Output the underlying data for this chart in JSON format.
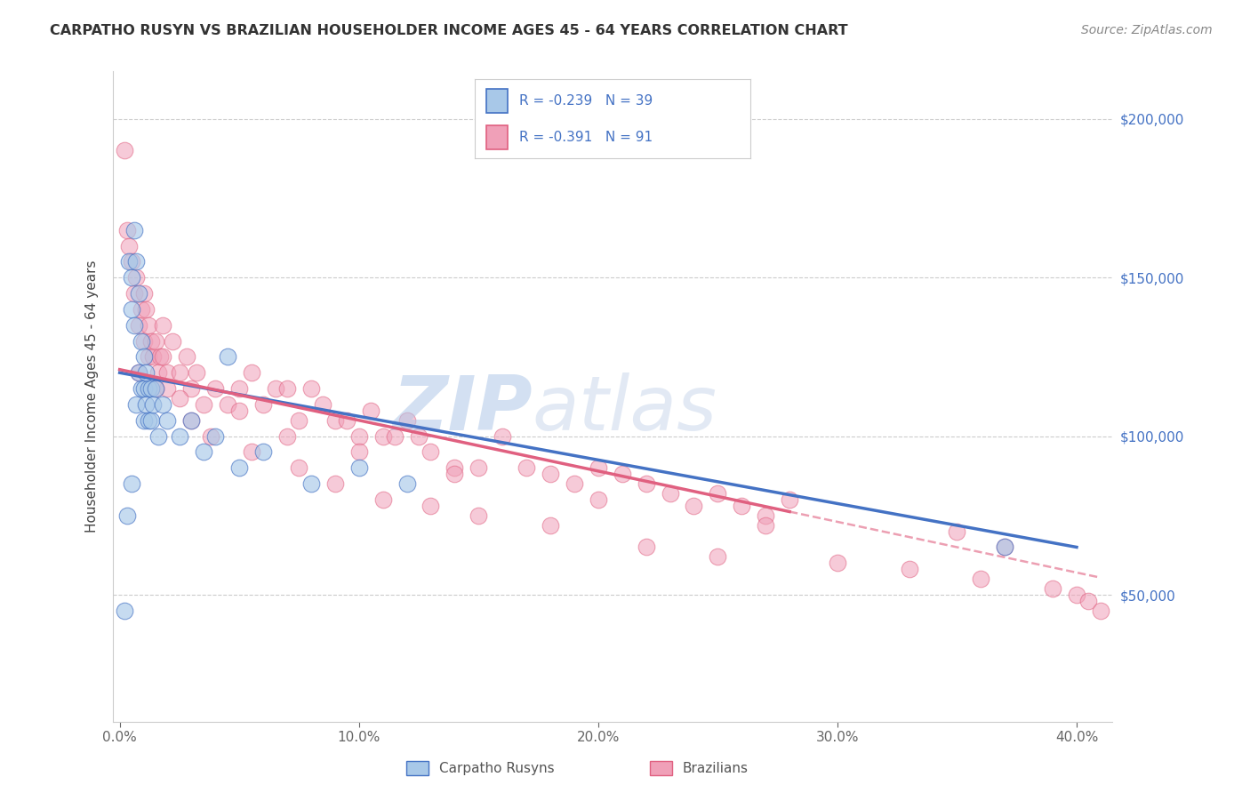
{
  "title": "CARPATHO RUSYN VS BRAZILIAN HOUSEHOLDER INCOME AGES 45 - 64 YEARS CORRELATION CHART",
  "source": "Source: ZipAtlas.com",
  "ylabel_label": "Householder Income Ages 45 - 64 years",
  "legend_label1": "Carpatho Rusyns",
  "legend_label2": "Brazilians",
  "R1": -0.239,
  "N1": 39,
  "R2": -0.391,
  "N2": 91,
  "color1": "#a8c8e8",
  "color2": "#f0a0b8",
  "line_color1": "#4472c4",
  "line_color2": "#e06080",
  "watermark_zip": "ZIP",
  "watermark_atlas": "atlas",
  "blue_x": [
    0.2,
    0.3,
    0.4,
    0.5,
    0.5,
    0.6,
    0.6,
    0.7,
    0.7,
    0.8,
    0.8,
    0.9,
    0.9,
    1.0,
    1.0,
    1.0,
    1.1,
    1.1,
    1.2,
    1.2,
    1.3,
    1.3,
    1.4,
    1.5,
    1.6,
    1.8,
    2.0,
    2.5,
    3.0,
    3.5,
    4.0,
    5.0,
    6.0,
    8.0,
    10.0,
    12.0,
    4.5,
    37.0,
    0.5
  ],
  "blue_y": [
    45000,
    75000,
    155000,
    150000,
    140000,
    165000,
    135000,
    155000,
    110000,
    145000,
    120000,
    130000,
    115000,
    125000,
    115000,
    105000,
    120000,
    110000,
    115000,
    105000,
    115000,
    105000,
    110000,
    115000,
    100000,
    110000,
    105000,
    100000,
    105000,
    95000,
    100000,
    90000,
    95000,
    85000,
    90000,
    85000,
    125000,
    65000,
    85000
  ],
  "pink_x": [
    0.2,
    0.3,
    0.4,
    0.5,
    0.6,
    0.7,
    0.8,
    0.9,
    1.0,
    1.0,
    1.1,
    1.2,
    1.2,
    1.3,
    1.4,
    1.5,
    1.6,
    1.7,
    1.8,
    2.0,
    2.2,
    2.5,
    2.8,
    3.0,
    3.2,
    3.5,
    4.0,
    4.5,
    5.0,
    5.5,
    6.0,
    6.5,
    7.0,
    7.5,
    8.0,
    8.5,
    9.0,
    9.5,
    10.0,
    10.5,
    11.0,
    11.5,
    12.0,
    12.5,
    13.0,
    14.0,
    15.0,
    16.0,
    17.0,
    18.0,
    19.0,
    20.0,
    21.0,
    22.0,
    23.0,
    24.0,
    25.0,
    26.0,
    27.0,
    28.0,
    2.0,
    3.0,
    5.0,
    7.0,
    10.0,
    14.0,
    20.0,
    27.0,
    35.0,
    37.0,
    0.8,
    1.5,
    1.8,
    2.5,
    3.8,
    5.5,
    7.5,
    9.0,
    11.0,
    13.0,
    15.0,
    18.0,
    22.0,
    25.0,
    30.0,
    33.0,
    36.0,
    39.0,
    40.0,
    40.5,
    41.0
  ],
  "pink_y": [
    190000,
    165000,
    160000,
    155000,
    145000,
    150000,
    135000,
    140000,
    145000,
    130000,
    140000,
    135000,
    125000,
    130000,
    125000,
    130000,
    120000,
    125000,
    135000,
    120000,
    130000,
    120000,
    125000,
    115000,
    120000,
    110000,
    115000,
    110000,
    115000,
    120000,
    110000,
    115000,
    115000,
    105000,
    115000,
    110000,
    105000,
    105000,
    100000,
    108000,
    100000,
    100000,
    105000,
    100000,
    95000,
    90000,
    90000,
    100000,
    90000,
    88000,
    85000,
    90000,
    88000,
    85000,
    82000,
    78000,
    82000,
    78000,
    75000,
    80000,
    115000,
    105000,
    108000,
    100000,
    95000,
    88000,
    80000,
    72000,
    70000,
    65000,
    120000,
    115000,
    125000,
    112000,
    100000,
    95000,
    90000,
    85000,
    80000,
    78000,
    75000,
    72000,
    65000,
    62000,
    60000,
    58000,
    55000,
    52000,
    50000,
    48000,
    45000
  ]
}
